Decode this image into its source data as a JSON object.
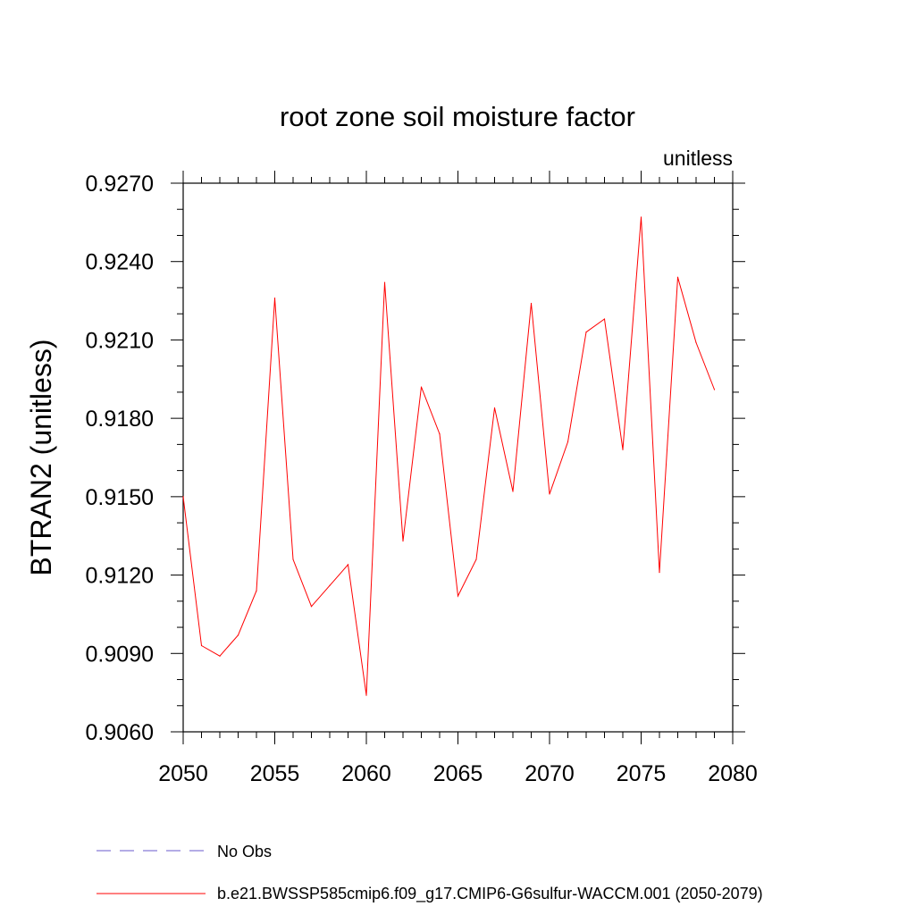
{
  "chart_data": {
    "type": "line",
    "title": "root zone soil moisture factor",
    "units_label": "unitless",
    "ylabel": "BTRAN2  (unitless)",
    "xlabel": "",
    "xlim": [
      2050,
      2080
    ],
    "ylim": [
      0.906,
      0.927
    ],
    "x_ticks": [
      "2050",
      "2055",
      "2060",
      "2065",
      "2070",
      "2075",
      "2080"
    ],
    "y_ticks": [
      "0.9060",
      "0.9090",
      "0.9120",
      "0.9150",
      "0.9180",
      "0.9210",
      "0.9240",
      "0.9270"
    ],
    "grid": false,
    "legend_position": "bottom",
    "series": [
      {
        "name": "b.e21.BWSSP585cmip6.f09_g17.CMIP6-G6sulfur-WACCM.001 (2050-2079)",
        "color": "#ff0000",
        "style": "solid",
        "x": [
          2050,
          2051,
          2052,
          2053,
          2054,
          2055,
          2056,
          2057,
          2058,
          2059,
          2060,
          2061,
          2062,
          2063,
          2064,
          2065,
          2066,
          2067,
          2068,
          2069,
          2070,
          2071,
          2072,
          2073,
          2074,
          2075,
          2076,
          2077,
          2078,
          2079
        ],
        "values": [
          0.915,
          0.9093,
          0.9089,
          0.9097,
          0.9114,
          0.9226,
          0.9126,
          0.9108,
          0.9116,
          0.9124,
          0.9074,
          0.9232,
          0.9133,
          0.9192,
          0.9174,
          0.9112,
          0.9126,
          0.9184,
          0.9152,
          0.9224,
          0.9151,
          0.9171,
          0.9213,
          0.9218,
          0.9168,
          0.9257,
          0.9121,
          0.9234,
          0.9209,
          0.9191
        ]
      }
    ],
    "legend": [
      {
        "label": "No Obs",
        "color": "#6a5acd",
        "style": "dashed"
      },
      {
        "label": "b.e21.BWSSP585cmip6.f09_g17.CMIP6-G6sulfur-WACCM.001 (2050-2079)",
        "color": "#ff0000",
        "style": "solid"
      }
    ]
  }
}
